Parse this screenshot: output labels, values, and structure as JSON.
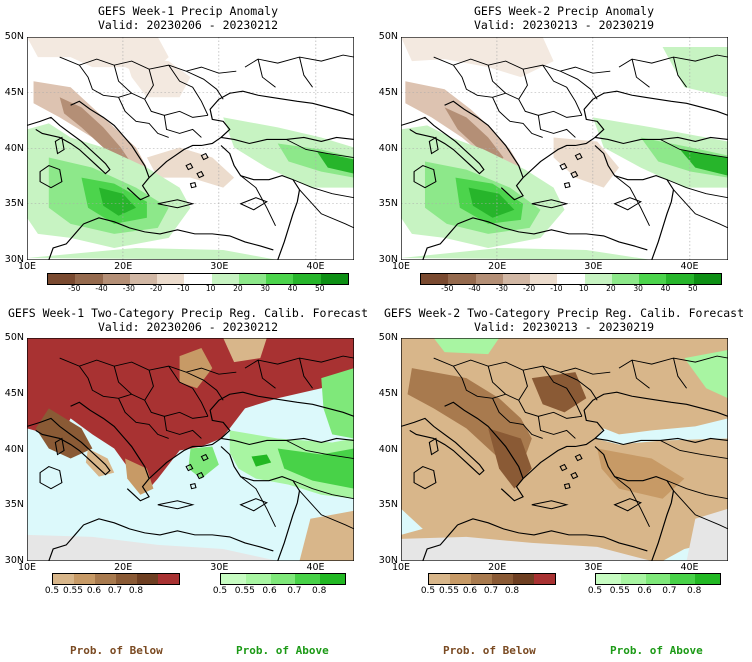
{
  "panels": {
    "p1": {
      "title": "GEFS Week-1 Precip Anomaly",
      "valid": "Valid: 20230206 - 20230212"
    },
    "p2": {
      "title": "GEFS Week-2 Precip Anomaly",
      "valid": "Valid: 20230213 - 20230219"
    },
    "p3": {
      "title": "GEFS Week-1 Two-Category Precip Reg. Calib. Forecast",
      "valid": "Valid: 20230206 - 20230212"
    },
    "p4": {
      "title": "GEFS Week-2 Two-Category Precip Reg. Calib. Forecast",
      "valid": "Valid: 20230213 - 20230219"
    }
  },
  "axes": {
    "lat": [
      "50N",
      "45N",
      "40N",
      "35N",
      "30N"
    ],
    "lon": [
      "10E",
      "20E",
      "30E",
      "40E"
    ]
  },
  "anomaly_legend": {
    "ticks": [
      "-50",
      "-40",
      "-30",
      "-20",
      "-10",
      "10",
      "20",
      "30",
      "40",
      "50"
    ],
    "colors": [
      "#7a4a30",
      "#956a4e",
      "#b48f76",
      "#d1b7a4",
      "#ecdccd",
      "#ffffff",
      "#c7f3c2",
      "#8de88a",
      "#4cd44c",
      "#27b52b",
      "#0d8f14"
    ]
  },
  "prob_legend": {
    "ticks": [
      "0.5",
      "0.55",
      "0.6",
      "0.7",
      "0.8"
    ],
    "below_colors": [
      "#d8b68a",
      "#c79a66",
      "#a87a4e",
      "#8a5a35",
      "#6e3f22",
      "#a83232"
    ],
    "above_colors": [
      "#c7fcc2",
      "#a8f5a2",
      "#7fe87a",
      "#48d248",
      "#22b823"
    ]
  },
  "labels": {
    "below": "Prob. of Below",
    "above": "Prob. of Above"
  },
  "colors": {
    "sea": "#dcf9fb",
    "below_title": "#7a4a22",
    "above_title": "#1c9a16"
  }
}
